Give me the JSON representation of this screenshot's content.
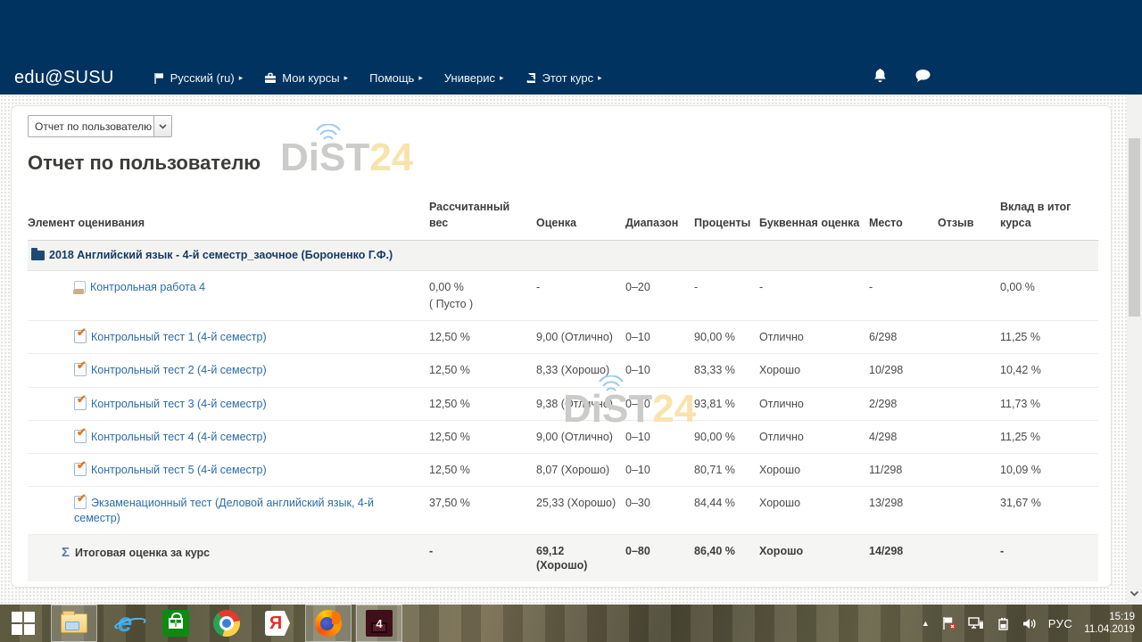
{
  "colors": {
    "navbar_bg": "#00335f",
    "link": "#2a6ca5",
    "watermark_gray": "#cbcbca",
    "watermark_accent": "#f9e3ad"
  },
  "navbar": {
    "brand": "edu@SUSU",
    "caret": "▸",
    "items": [
      {
        "label": "Русский (ru)",
        "icon": "flag-icon"
      },
      {
        "label": "Мои курсы",
        "icon": "briefcase-icon"
      },
      {
        "label": "Помощь",
        "icon": ""
      },
      {
        "label": "Универис",
        "icon": ""
      },
      {
        "label": "Этот курс",
        "icon": "book-icon"
      }
    ]
  },
  "report": {
    "selector_value": "Отчет по пользователю",
    "title": "Отчет по пользователю"
  },
  "watermark": {
    "text_gray": "DiST",
    "text_accent": "24"
  },
  "table": {
    "headers": [
      "Элемент оценивания",
      "Рассчитанный вес",
      "Оценка",
      "Диапазон",
      "Проценты",
      "Буквенная оценка",
      "Место",
      "Отзыв",
      "Вклад в итог курса"
    ],
    "category": "2018 Английский язык - 4-й семестр_заочное (Бороненко Г.Ф.)",
    "rows": [
      {
        "icon": "assignment-icon",
        "name": "Контрольная работа 4",
        "weight": "0,00 %",
        "weight_note": "( Пусто )",
        "grade": "-",
        "range": "0–20",
        "percent": "-",
        "letter": "-",
        "rank": "-",
        "feedback": "",
        "contribution": "0,00 %"
      },
      {
        "icon": "quiz-icon",
        "name": "Контрольный тест 1 (4-й семестр)",
        "weight": "12,50 %",
        "weight_note": "",
        "grade": "9,00 (Отлично)",
        "range": "0–10",
        "percent": "90,00 %",
        "letter": "Отлично",
        "rank": "6/298",
        "feedback": "",
        "contribution": "11,25 %"
      },
      {
        "icon": "quiz-icon",
        "name": "Контрольный тест 2 (4-й семестр)",
        "weight": "12,50 %",
        "weight_note": "",
        "grade": "8,33 (Хорошо)",
        "range": "0–10",
        "percent": "83,33 %",
        "letter": "Хорошо",
        "rank": "10/298",
        "feedback": "",
        "contribution": "10,42 %"
      },
      {
        "icon": "quiz-icon",
        "name": "Контрольный тест 3 (4-й семестр)",
        "weight": "12,50 %",
        "weight_note": "",
        "grade": "9,38 (Отлично)",
        "range": "0–10",
        "percent": "93,81 %",
        "letter": "Отлично",
        "rank": "2/298",
        "feedback": "",
        "contribution": "11,73 %"
      },
      {
        "icon": "quiz-icon",
        "name": "Контрольный тест 4 (4-й семестр)",
        "weight": "12,50 %",
        "weight_note": "",
        "grade": "9,00 (Отлично)",
        "range": "0–10",
        "percent": "90,00 %",
        "letter": "Отлично",
        "rank": "4/298",
        "feedback": "",
        "contribution": "11,25 %"
      },
      {
        "icon": "quiz-icon",
        "name": "Контрольный тест 5 (4-й семестр)",
        "weight": "12,50 %",
        "weight_note": "",
        "grade": "8,07 (Хорошо)",
        "range": "0–10",
        "percent": "80,71 %",
        "letter": "Хорошо",
        "rank": "11/298",
        "feedback": "",
        "contribution": "10,09 %"
      },
      {
        "icon": "quiz-icon",
        "name": "Экзаменационный тест (Деловой английский язык, 4-й семестр)",
        "weight": "37,50 %",
        "weight_note": "",
        "grade": "25,33 (Хорошо)",
        "range": "0–30",
        "percent": "84,44 %",
        "letter": "Хорошо",
        "rank": "13/298",
        "feedback": "",
        "contribution": "31,67 %"
      }
    ],
    "total": {
      "icon": "sigma-icon",
      "sigma": "Σ",
      "name": "Итоговая оценка за курс",
      "weight": "-",
      "grade": "69,12 (Хорошо)",
      "range": "0–80",
      "percent": "86,40 %",
      "letter": "Хорошо",
      "rank": "14/298",
      "feedback": "",
      "contribution": "-"
    }
  },
  "taskbar": {
    "items": [
      {
        "id": "start-button",
        "active": false
      },
      {
        "id": "file-explorer",
        "active": true
      },
      {
        "id": "internet-explorer",
        "active": false
      },
      {
        "id": "windows-store",
        "active": false
      },
      {
        "id": "chrome",
        "active": false
      },
      {
        "id": "yandex-browser",
        "active": false
      },
      {
        "id": "firefox",
        "active": true
      },
      {
        "id": "app-4",
        "active": true
      }
    ],
    "yandex_letter": "Я",
    "app4_label": "4",
    "tray": {
      "chevron": "▲",
      "language": "РУС",
      "time": "15:19",
      "date": "11.04.2019"
    }
  }
}
